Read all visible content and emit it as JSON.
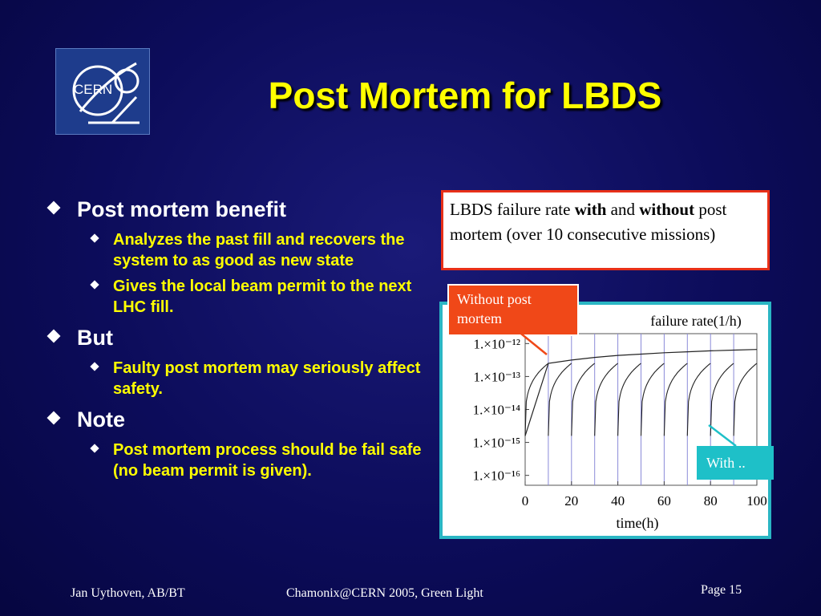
{
  "logo": {
    "text": "CERN"
  },
  "title": "Post Mortem for LBDS",
  "bullets": [
    {
      "label": "Post mortem benefit",
      "sub": [
        "Analyzes the past fill and recovers the system to as good as new state",
        "Gives the local beam permit to the next LHC fill."
      ]
    },
    {
      "label": "But",
      "sub": [
        "Faulty post mortem may seriously affect safety."
      ]
    },
    {
      "label": "Note",
      "sub": [
        "Post mortem process should be fail safe (no beam permit is given)."
      ]
    }
  ],
  "callout": {
    "t1": "LBDS failure rate ",
    "with": "with",
    "t2": " and ",
    "without": "without",
    "t3": " post mortem (over 10 consecutive missions)"
  },
  "tags": {
    "without": "Without post mortem",
    "with": "With .."
  },
  "chart_data": {
    "type": "line",
    "title": "failure rate(1/h)",
    "xlabel": "time(h)",
    "ylabel": "",
    "x_ticks": [
      0,
      20,
      40,
      60,
      80,
      100
    ],
    "y_ticks": [
      "1.×10⁻¹⁶",
      "1.×10⁻¹⁵",
      "1.×10⁻¹⁴",
      "1.×10⁻¹³",
      "1.×10⁻¹²"
    ],
    "y_exponents": [
      -16,
      -15,
      -14,
      -13,
      -12
    ],
    "xlim": [
      0,
      100
    ],
    "ylog": true,
    "mission_boundaries_h": [
      10,
      20,
      30,
      40,
      50,
      60,
      70,
      80,
      90
    ],
    "series": [
      {
        "x": [
          0,
          10,
          20,
          30,
          40,
          50,
          60,
          70,
          80,
          90,
          100
        ],
        "log10_y": [
          -14.8,
          -12.6,
          -12.5,
          -12.42,
          -12.36,
          -12.32,
          -12.28,
          -12.25,
          -12.22,
          -12.2,
          -12.18
        ]
      },
      {
        "cycle_h": 10,
        "log10_y_start": -14.8,
        "log10_y_end": -12.6
      }
    ],
    "colors": {
      "curve": "#222222",
      "grid": "#8a8ad8"
    }
  },
  "footer": {
    "author": "Jan Uythoven, AB/BT",
    "event": "Chamonix@CERN  2005, Green Light",
    "page": "Page 15"
  }
}
